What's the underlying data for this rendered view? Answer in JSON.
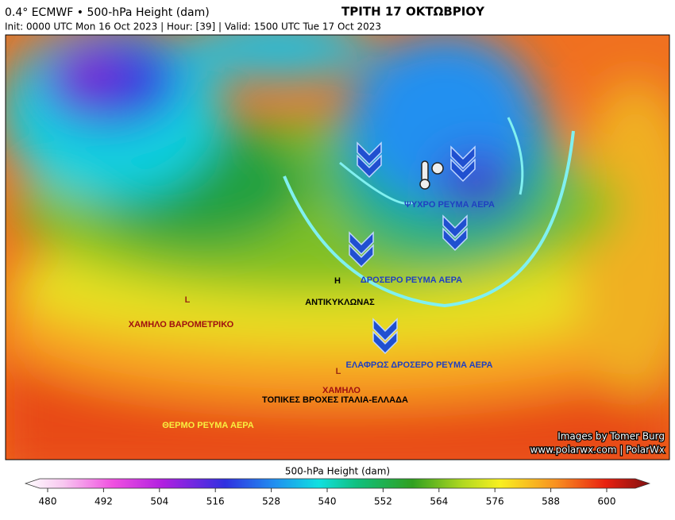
{
  "header": {
    "title": "0.4° ECMWF • 500-hPa Height (dam)",
    "subtitle": "Init: 0000 UTC Mon 16 Oct 2023 | Hour: [39] | Valid: 1500 UTC Tue 17 Oct 2023",
    "date_title": "ΤΡΙΤΗ 17 ΟΚΤΩΒΡΙΟΥ"
  },
  "map": {
    "annotations": [
      "L",
      "ΧΑΜΗΛΟ ΒΑΡΟΜΕΤΡΙΚΟ",
      "H",
      "ΑΝΤΙΚΥΚΛΩΝΑΣ",
      "L",
      "ΧΑΜΗΛΟ",
      "ΤΟΠΙΚΕΣ ΒΡΟΧΕΣ ΙΤΑΛΙΑ-ΕΛΛΑΔΑ",
      "ΘΕΡΜΟ ΡΕΥΜΑ ΑΕΡΑ",
      "ΨΥΧΡΟ ΡΕΥΜΑ ΑΕΡΑ",
      "ΔΡΟΣΕΡΟ ΡΕΥΜΑ ΑΕΡΑ",
      "ΕΛΑΦΡΩΣ ΔΡΟΣΕΡΟ ΡΕΥΜΑ ΑΕΡΑ"
    ],
    "credits": [
      "Images by Tomer Burg",
      "www.polarwx.com | PolarWx"
    ]
  },
  "colorbar": {
    "title": "500-hPa Height (dam)",
    "ticks": [
      480,
      492,
      504,
      516,
      528,
      540,
      552,
      564,
      576,
      588,
      600
    ]
  }
}
